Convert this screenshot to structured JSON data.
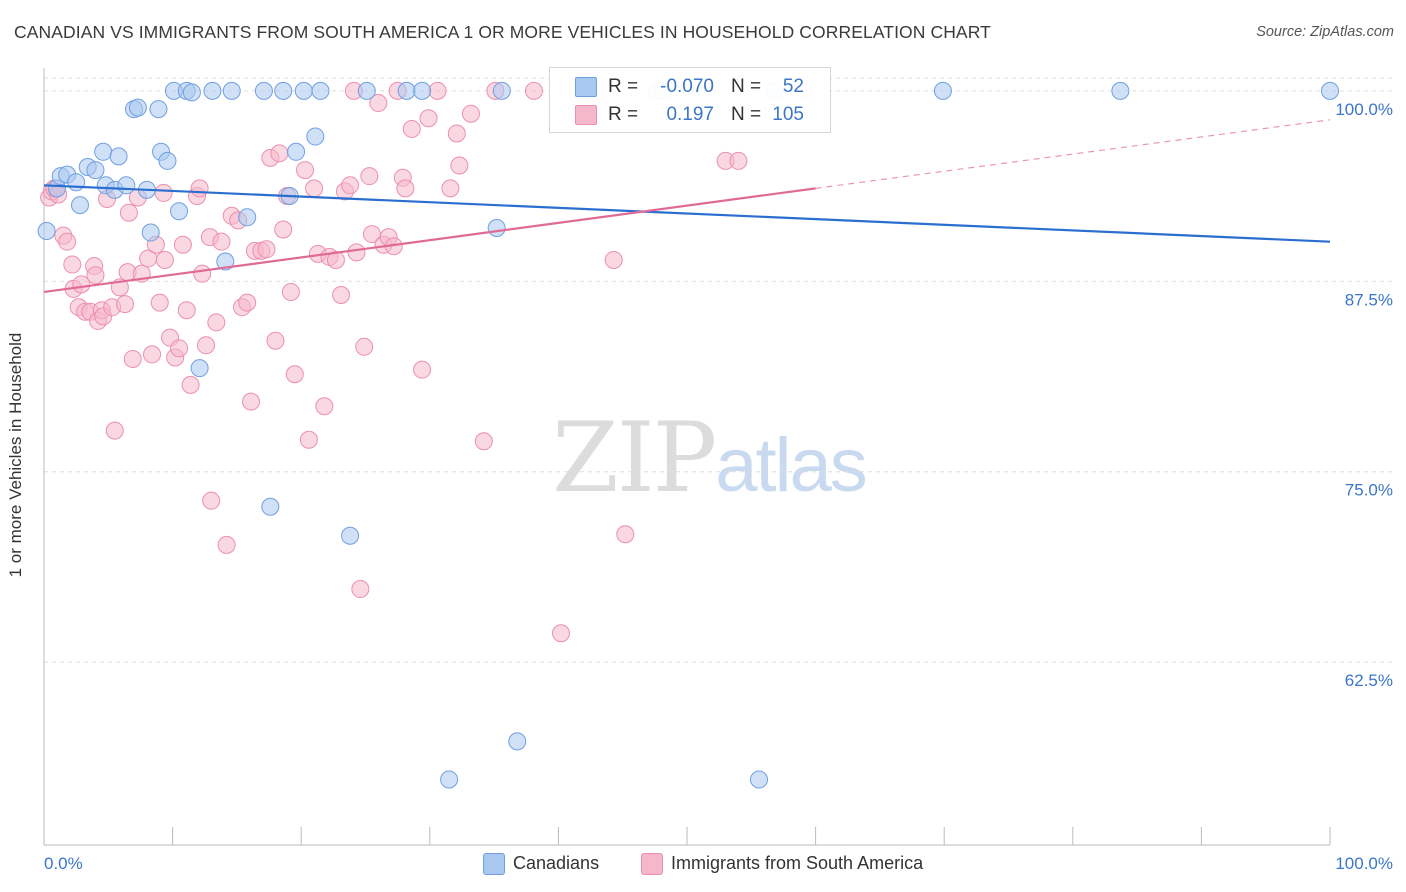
{
  "title": "CANADIAN VS IMMIGRANTS FROM SOUTH AMERICA 1 OR MORE VEHICLES IN HOUSEHOLD CORRELATION CHART",
  "source": "Source: ZipAtlas.com",
  "watermark": {
    "zip": "ZIP",
    "atlas": "atlas"
  },
  "legend_box": {
    "rows": [
      {
        "r_label": "R = ",
        "r_value": "-0.070",
        "n_label": "N = ",
        "n_value": "52",
        "color": "#a9c8f0"
      },
      {
        "r_label": "R = ",
        "r_value": "0.197",
        "n_label": "N = ",
        "n_value": "105",
        "color": "#f5b8cb"
      }
    ]
  },
  "bottom_legend": [
    {
      "label": "Canadians",
      "color": "#a9c8f0"
    },
    {
      "label": "Immigrants from South America",
      "color": "#f5b8cb"
    }
  ],
  "chart_data": {
    "type": "scatter",
    "title": "CANADIAN VS IMMIGRANTS FROM SOUTH AMERICA 1 OR MORE VEHICLES IN HOUSEHOLD CORRELATION CHART",
    "xlabel": "",
    "ylabel": "1 or more Vehicles in Household",
    "xlim": [
      0,
      100
    ],
    "ylim": [
      50.5,
      101.5
    ],
    "x_tick_labels": [
      "0.0%",
      "100.0%"
    ],
    "y_ticks": [
      62.5,
      75.0,
      87.5,
      100.0
    ],
    "y_tick_labels": [
      "62.5%",
      "75.0%",
      "87.5%",
      "100.0%"
    ],
    "grid": "horizontal dashed",
    "series": [
      {
        "name": "Canadians",
        "color": "#6fa0e0",
        "fill": "#a9c8f0",
        "trend": {
          "x": [
            0,
            100
          ],
          "y": [
            93.8,
            90.1
          ],
          "color": "#2a6fcf"
        },
        "points": [
          [
            0.2,
            90.8
          ],
          [
            1.0,
            93.6
          ],
          [
            1.3,
            94.4
          ],
          [
            1.8,
            94.5
          ],
          [
            2.5,
            94.0
          ],
          [
            2.8,
            92.5
          ],
          [
            3.4,
            95.0
          ],
          [
            4.0,
            94.8
          ],
          [
            4.6,
            96.0
          ],
          [
            4.8,
            93.8
          ],
          [
            5.5,
            93.5
          ],
          [
            5.8,
            95.7
          ],
          [
            6.4,
            93.8
          ],
          [
            7.0,
            98.8
          ],
          [
            7.3,
            98.9
          ],
          [
            8.0,
            93.5
          ],
          [
            8.3,
            90.7
          ],
          [
            8.9,
            98.8
          ],
          [
            9.1,
            96.0
          ],
          [
            9.6,
            95.4
          ],
          [
            10.1,
            100.0
          ],
          [
            10.5,
            92.1
          ],
          [
            11.1,
            100.0
          ],
          [
            11.5,
            99.9
          ],
          [
            12.1,
            81.8
          ],
          [
            13.1,
            100.0
          ],
          [
            14.1,
            88.8
          ],
          [
            14.6,
            100.0
          ],
          [
            15.8,
            91.7
          ],
          [
            17.1,
            100.0
          ],
          [
            17.6,
            72.7
          ],
          [
            18.6,
            100.0
          ],
          [
            19.1,
            93.1
          ],
          [
            19.6,
            96.0
          ],
          [
            20.2,
            100.0
          ],
          [
            21.1,
            97.0
          ],
          [
            21.5,
            100.0
          ],
          [
            23.8,
            70.8
          ],
          [
            25.1,
            100.0
          ],
          [
            28.2,
            100.0
          ],
          [
            29.4,
            100.0
          ],
          [
            31.5,
            54.8
          ],
          [
            35.2,
            91.0
          ],
          [
            35.6,
            100.0
          ],
          [
            36.8,
            57.3
          ],
          [
            42.0,
            100.0
          ],
          [
            48.1,
            100.0
          ],
          [
            55.6,
            54.8
          ],
          [
            56.8,
            100.0
          ],
          [
            69.9,
            100.0
          ],
          [
            83.7,
            100.0
          ],
          [
            100.0,
            100.0
          ]
        ]
      },
      {
        "name": "Immigrants from South America",
        "color": "#ec8fb0",
        "fill": "#f5b8cb",
        "trend": {
          "x": [
            0,
            60
          ],
          "y": [
            86.8,
            93.6
          ],
          "dashed_to": {
            "x": 100,
            "y": 98.1
          },
          "color": "#e06a96"
        },
        "points": [
          [
            0.4,
            93.0
          ],
          [
            0.6,
            93.4
          ],
          [
            0.8,
            93.6
          ],
          [
            1.1,
            93.2
          ],
          [
            1.5,
            90.5
          ],
          [
            1.8,
            90.1
          ],
          [
            2.2,
            88.6
          ],
          [
            2.3,
            87.0
          ],
          [
            2.7,
            85.8
          ],
          [
            2.9,
            87.3
          ],
          [
            3.2,
            85.5
          ],
          [
            3.6,
            85.5
          ],
          [
            3.9,
            88.5
          ],
          [
            4.0,
            87.9
          ],
          [
            4.2,
            84.9
          ],
          [
            4.5,
            85.6
          ],
          [
            4.6,
            85.2
          ],
          [
            4.9,
            92.9
          ],
          [
            5.3,
            85.8
          ],
          [
            5.5,
            77.7
          ],
          [
            5.9,
            87.1
          ],
          [
            6.3,
            86.0
          ],
          [
            6.5,
            88.1
          ],
          [
            6.6,
            92.0
          ],
          [
            6.9,
            82.4
          ],
          [
            7.3,
            93.0
          ],
          [
            7.6,
            88.0
          ],
          [
            8.1,
            89.0
          ],
          [
            8.4,
            82.7
          ],
          [
            8.7,
            89.9
          ],
          [
            9.0,
            86.1
          ],
          [
            9.3,
            93.3
          ],
          [
            9.4,
            88.9
          ],
          [
            9.8,
            83.8
          ],
          [
            10.2,
            82.5
          ],
          [
            10.5,
            83.1
          ],
          [
            10.8,
            89.9
          ],
          [
            11.1,
            85.6
          ],
          [
            11.4,
            80.7
          ],
          [
            11.9,
            93.1
          ],
          [
            12.1,
            93.6
          ],
          [
            12.3,
            88.0
          ],
          [
            12.6,
            83.3
          ],
          [
            12.9,
            90.4
          ],
          [
            13.0,
            73.1
          ],
          [
            13.4,
            84.8
          ],
          [
            13.8,
            90.1
          ],
          [
            14.2,
            70.2
          ],
          [
            14.6,
            91.8
          ],
          [
            15.1,
            91.5
          ],
          [
            15.4,
            85.8
          ],
          [
            15.8,
            86.1
          ],
          [
            16.1,
            79.6
          ],
          [
            16.4,
            89.5
          ],
          [
            16.9,
            89.5
          ],
          [
            17.3,
            89.6
          ],
          [
            17.6,
            95.6
          ],
          [
            18.0,
            83.6
          ],
          [
            18.3,
            95.9
          ],
          [
            18.6,
            90.9
          ],
          [
            18.9,
            93.1
          ],
          [
            19.2,
            86.8
          ],
          [
            19.5,
            81.4
          ],
          [
            20.3,
            94.8
          ],
          [
            20.6,
            77.1
          ],
          [
            21.0,
            93.6
          ],
          [
            21.3,
            89.3
          ],
          [
            21.8,
            79.3
          ],
          [
            22.2,
            89.1
          ],
          [
            22.7,
            88.9
          ],
          [
            23.1,
            86.6
          ],
          [
            23.4,
            93.4
          ],
          [
            23.8,
            93.8
          ],
          [
            24.1,
            100.0
          ],
          [
            24.3,
            89.4
          ],
          [
            24.6,
            67.3
          ],
          [
            24.9,
            83.2
          ],
          [
            25.3,
            94.4
          ],
          [
            25.5,
            90.6
          ],
          [
            26.0,
            99.2
          ],
          [
            26.4,
            89.9
          ],
          [
            26.8,
            90.4
          ],
          [
            27.2,
            89.8
          ],
          [
            27.5,
            100.0
          ],
          [
            27.9,
            94.3
          ],
          [
            28.1,
            93.6
          ],
          [
            28.6,
            97.5
          ],
          [
            29.4,
            81.7
          ],
          [
            29.9,
            98.2
          ],
          [
            30.6,
            100.0
          ],
          [
            31.6,
            93.6
          ],
          [
            32.1,
            97.2
          ],
          [
            32.3,
            95.1
          ],
          [
            33.2,
            98.5
          ],
          [
            34.2,
            77.0
          ],
          [
            35.1,
            100.0
          ],
          [
            38.1,
            100.0
          ],
          [
            40.2,
            64.4
          ],
          [
            43.1,
            100.0
          ],
          [
            44.3,
            88.9
          ],
          [
            45.2,
            70.9
          ],
          [
            47.7,
            100.0
          ],
          [
            53.0,
            95.4
          ],
          [
            54.0,
            95.4
          ],
          [
            59.2,
            100.0
          ]
        ]
      }
    ]
  }
}
